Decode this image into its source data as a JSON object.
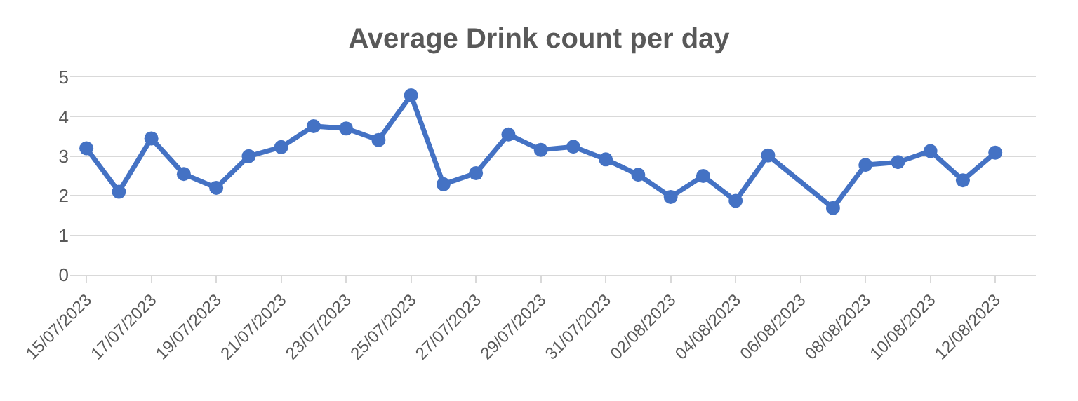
{
  "chart_data": {
    "type": "line",
    "title": "Average Drink count per day",
    "x": [
      "2023-07-15",
      "2023-07-16",
      "2023-07-17",
      "2023-07-18",
      "2023-07-19",
      "2023-07-20",
      "2023-07-21",
      "2023-07-22",
      "2023-07-23",
      "2023-07-24",
      "2023-07-25",
      "2023-07-26",
      "2023-07-27",
      "2023-07-28",
      "2023-07-29",
      "2023-07-30",
      "2023-07-31",
      "2023-08-01",
      "2023-08-02",
      "2023-08-03",
      "2023-08-04",
      "2023-08-05",
      "2023-08-07",
      "2023-08-08",
      "2023-08-09",
      "2023-08-10",
      "2023-08-11",
      "2023-08-12"
    ],
    "series": [
      {
        "color": "#4472c4",
        "values": [
          3.2,
          2.1,
          3.45,
          2.55,
          2.2,
          3.0,
          3.23,
          3.76,
          3.7,
          3.41,
          4.54,
          2.29,
          2.57,
          3.55,
          3.16,
          3.24,
          2.92,
          2.53,
          1.97,
          2.5,
          1.87,
          3.02,
          1.69,
          2.78,
          2.85,
          3.13,
          2.39,
          3.09
        ]
      }
    ],
    "xlim": [
      "2023-07-14T12:00",
      "2023-08-13T06:00"
    ],
    "xticks": [
      {
        "value": "2023-07-15",
        "label": "15/07/2023"
      },
      {
        "value": "2023-07-17",
        "label": "17/07/2023"
      },
      {
        "value": "2023-07-19",
        "label": "19/07/2023"
      },
      {
        "value": "2023-07-21",
        "label": "21/07/2023"
      },
      {
        "value": "2023-07-23",
        "label": "23/07/2023"
      },
      {
        "value": "2023-07-25",
        "label": "25/07/2023"
      },
      {
        "value": "2023-07-27",
        "label": "27/07/2023"
      },
      {
        "value": "2023-07-29",
        "label": "29/07/2023"
      },
      {
        "value": "2023-07-31",
        "label": "31/07/2023"
      },
      {
        "value": "2023-08-02",
        "label": "02/08/2023"
      },
      {
        "value": "2023-08-04",
        "label": "04/08/2023"
      },
      {
        "value": "2023-08-06",
        "label": "06/08/2023"
      },
      {
        "value": "2023-08-08",
        "label": "08/08/2023"
      },
      {
        "value": "2023-08-10",
        "label": "10/08/2023"
      },
      {
        "value": "2023-08-12",
        "label": "12/08/2023"
      }
    ],
    "ylim": [
      0,
      5
    ],
    "yticks": [
      0,
      1,
      2,
      3,
      4,
      5
    ],
    "grid": "y",
    "marker": "circle",
    "line_style": "solid"
  }
}
